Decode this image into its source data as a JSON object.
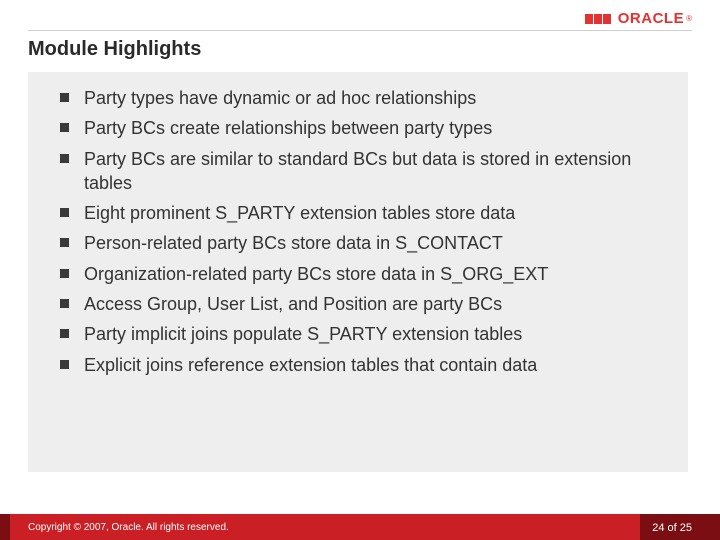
{
  "brand": {
    "name": "ORACLE",
    "color": "#e43131"
  },
  "title": "Module Highlights",
  "bullets": [
    "Party types have dynamic or ad hoc relationships",
    "Party BCs create relationships between party types",
    "Party BCs are similar to standard BCs but data is stored in extension tables",
    "Eight prominent S_PARTY extension tables store data",
    "Person-related party BCs store data in S_CONTACT",
    "Organization-related party BCs store data in S_ORG_EXT",
    "Access Group, User List, and Position are party BCs",
    "Party implicit joins populate S_PARTY extension tables",
    "Explicit joins reference extension tables that contain data"
  ],
  "footer": {
    "copyright": "Copyright © 2007, Oracle. All rights reserved.",
    "page_current": "24",
    "page_sep": " of ",
    "page_total": "25",
    "bar_color": "#c91f25",
    "accent_color": "#7a0e12"
  },
  "styles": {
    "title_fontsize": 20,
    "bullet_fontsize": 18,
    "content_bg": "#eeeeee",
    "bullet_marker_color": "#3a3a3a",
    "text_color": "#333333"
  }
}
